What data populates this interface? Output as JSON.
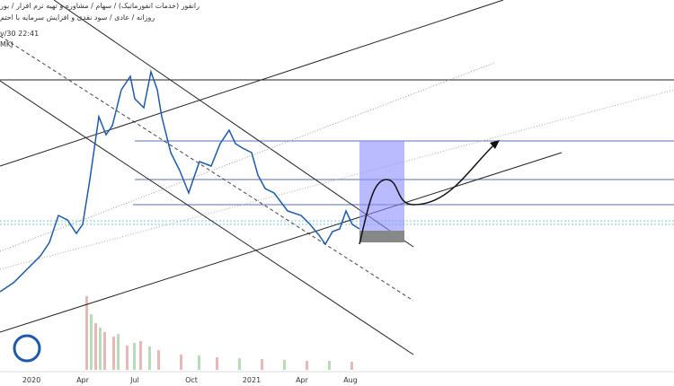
{
  "header": {
    "line1": "رانفور (خدمات انفورماتیک) / سهام / مشاوره و تهیه نرم افزار / بور",
    "line2": "روزانه / عادی / سود نقدی و افزایش سرمایه با احتم",
    "time": "v/30 22:41",
    "code": "MKJ"
  },
  "x_axis": {
    "labels": [
      "2020",
      "Apr",
      "Jul",
      "Oct",
      "2021",
      "Apr",
      "Aug"
    ]
  }
}
